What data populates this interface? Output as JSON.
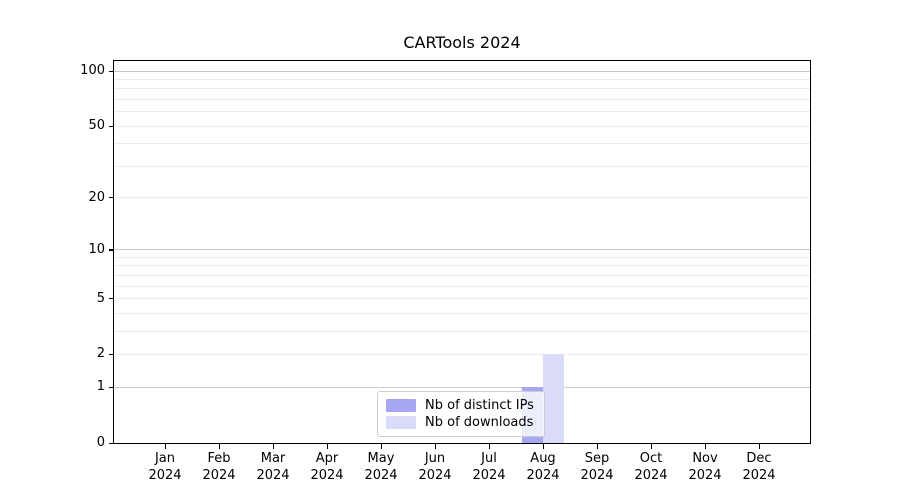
{
  "title": "CARTools 2024",
  "colors": {
    "distinct_ips": "#a5a8f0",
    "downloads": "#d9dbf8",
    "axis": "#000000",
    "grid_major": "#c8c8c8",
    "grid_minor": "#ececec",
    "legend_border": "#cccccc"
  },
  "legend": {
    "items": [
      {
        "label": "Nb of distinct IPs"
      },
      {
        "label": "Nb of downloads"
      }
    ]
  },
  "y_axis": {
    "tick_values": [
      0,
      1,
      2,
      5,
      10,
      20,
      50,
      100
    ],
    "tick_labels": [
      "0",
      "1",
      "2",
      "5",
      "10",
      "20",
      "50",
      "100"
    ],
    "major_grid_values": [
      1,
      10,
      100
    ],
    "minor_grid_values": [
      2,
      3,
      4,
      5,
      6,
      7,
      8,
      9,
      20,
      30,
      40,
      50,
      60,
      70,
      80,
      90
    ]
  },
  "chart_data": {
    "type": "bar",
    "title": "CARTools 2024",
    "categories": [
      "Jan 2024",
      "Feb 2024",
      "Mar 2024",
      "Apr 2024",
      "May 2024",
      "Jun 2024",
      "Jul 2024",
      "Aug 2024",
      "Sep 2024",
      "Oct 2024",
      "Nov 2024",
      "Dec 2024"
    ],
    "series": [
      {
        "name": "Nb of distinct IPs",
        "color": "#a5a8f0",
        "values": [
          0,
          0,
          0,
          0,
          0,
          0,
          0,
          1,
          0,
          0,
          0,
          0
        ]
      },
      {
        "name": "Nb of downloads",
        "color": "#d9dbf8",
        "values": [
          0,
          0,
          0,
          0,
          0,
          0,
          0,
          2,
          0,
          0,
          0,
          0
        ]
      }
    ],
    "xlabel": "",
    "ylabel": "",
    "yscale": "log1p",
    "ylim": [
      0,
      115
    ],
    "ytick_values": [
      0,
      1,
      2,
      5,
      10,
      20,
      50,
      100
    ],
    "grid": "horizontal",
    "legend_position": "lower center"
  }
}
